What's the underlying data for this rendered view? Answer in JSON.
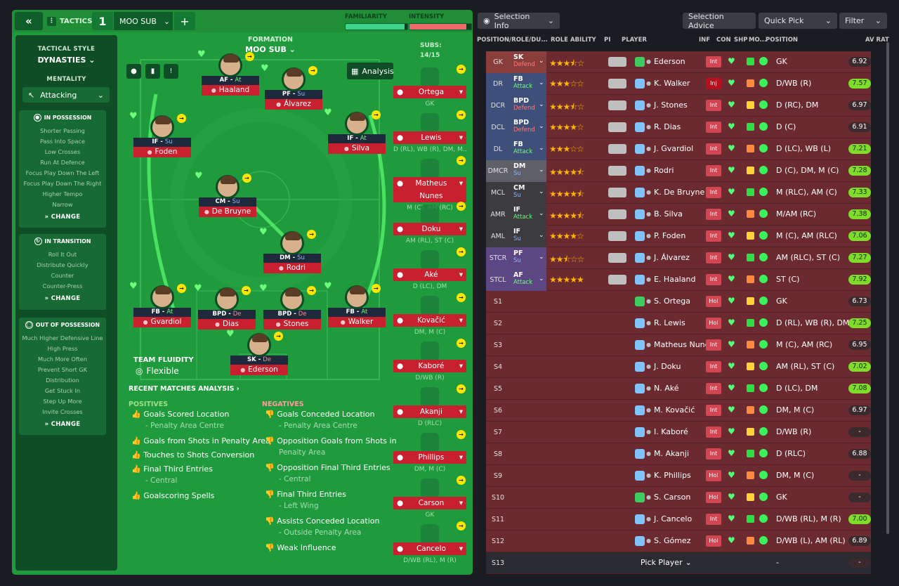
{
  "topbar": {
    "tactics_label": "TACTICS",
    "tactic_number": "1",
    "tactic_name": "MOO SUB",
    "familiarity_label": "FAMILIARITY",
    "intensity_label": "INTENSITY",
    "familiarity_value": 0.95,
    "intensity_value": 0.92
  },
  "sidebar": {
    "style_label": "TACTICAL STYLE",
    "style_value": "DYNASTIES",
    "mentality_label": "MENTALITY",
    "mentality_value": "Attacking",
    "in_possession": {
      "title": "IN POSSESSION",
      "items": [
        "Shorter Passing",
        "Pass Into Space",
        "Low Crosses",
        "Run At Defence",
        "Focus Play Down The Left",
        "Focus Play Down The Right",
        "Higher Tempo",
        "Narrow"
      ],
      "change": "CHANGE"
    },
    "in_transition": {
      "title": "IN TRANSITION",
      "items": [
        "Roll It Out",
        "Distribute Quickly",
        "Counter",
        "Counter-Press"
      ],
      "change": "CHANGE"
    },
    "out_of_possession": {
      "title": "OUT OF POSSESSION",
      "items": [
        "Much Higher Defensive Line",
        "High Press",
        "Much More Often",
        "Prevent Short GK",
        "Distribution",
        "Get Stuck In",
        "Step Up More",
        "Invite Crosses"
      ],
      "change": "CHANGE"
    }
  },
  "pitch": {
    "formation_label": "FORMATION",
    "formation_value": "MOO SUB",
    "analysis_label": "Analysis",
    "team_fluidity_label": "TEAM FLUIDITY",
    "team_fluidity_value": "Flexible",
    "players": [
      {
        "role": "AF",
        "duty": "At",
        "name": "Haaland"
      },
      {
        "role": "PF",
        "duty": "Su",
        "name": "Álvarez"
      },
      {
        "role": "IF",
        "duty": "Su",
        "name": "Foden"
      },
      {
        "role": "IF",
        "duty": "At",
        "name": "Silva"
      },
      {
        "role": "CM",
        "duty": "Su",
        "name": "De Bruyne"
      },
      {
        "role": "DM",
        "duty": "Su",
        "name": "Rodri"
      },
      {
        "role": "FB",
        "duty": "At",
        "name": "Gvardiol"
      },
      {
        "role": "BPD",
        "duty": "De",
        "name": "Dias"
      },
      {
        "role": "BPD",
        "duty": "De",
        "name": "Stones"
      },
      {
        "role": "FB",
        "duty": "At",
        "name": "Walker"
      },
      {
        "role": "SK",
        "duty": "De",
        "name": "Ederson"
      }
    ]
  },
  "recent": {
    "title": "RECENT MATCHES ANALYSIS",
    "positives_label": "POSITIVES",
    "negatives_label": "NEGATIVES",
    "positives": [
      {
        "t": "Goals Scored Location",
        "s": "- Penalty Area Centre"
      },
      {
        "t": "Goals from Shots in Penalty Area",
        "s": ""
      },
      {
        "t": "Touches to Shots Conversion",
        "s": ""
      },
      {
        "t": "Final Third Entries",
        "s": "- Central"
      },
      {
        "t": "Goalscoring Spells",
        "s": ""
      }
    ],
    "negatives": [
      {
        "t": "Goals Conceded Location",
        "s": "- Penalty Area Centre"
      },
      {
        "t": "Opposition Goals from Shots in",
        "s": "Penalty Area"
      },
      {
        "t": "Opposition Final Third Entries",
        "s": "- Central"
      },
      {
        "t": "Final Third Entries",
        "s": "- Left Wing"
      },
      {
        "t": "Assists Conceded Location",
        "s": "- Outside Penalty Area"
      },
      {
        "t": "Weak Influence",
        "s": ""
      }
    ]
  },
  "subs": {
    "label": "SUBS:",
    "count": "14/15",
    "list": [
      {
        "name": "Ortega",
        "pos": "GK"
      },
      {
        "name": "Lewis",
        "pos": "D (RL), WB (R), DM, M..."
      },
      {
        "name": "Matheus Nunes",
        "pos": "M (C), AM (RC)"
      },
      {
        "name": "Doku",
        "pos": "AM (RL), ST (C)"
      },
      {
        "name": "Aké",
        "pos": "D (LC), DM"
      },
      {
        "name": "Kovačić",
        "pos": "DM, M (C)"
      },
      {
        "name": "Kaboré",
        "pos": "D/WB (R)"
      },
      {
        "name": "Akanji",
        "pos": "D (RLC)"
      },
      {
        "name": "Phillips",
        "pos": "DM, M (C)"
      },
      {
        "name": "Carson",
        "pos": "GK"
      },
      {
        "name": "Cancelo",
        "pos": "D/WB (RL), M (R)"
      }
    ]
  },
  "right": {
    "selection_info": "Selection Info",
    "selection_advice": "Selection Advice",
    "quick_pick": "Quick Pick",
    "filter": "Filter",
    "headers": {
      "pos": "POSITION/ROLE/DU...",
      "ability": "ROLE ABILITY",
      "pi": "PI",
      "player": "PLAYER",
      "inf": "INF",
      "con": "CON",
      "shp": "SHP",
      "mo": "MO...",
      "position": "POSITION",
      "rat": "AV RAT"
    },
    "rows": [
      {
        "pos": "GK",
        "role": "SK",
        "duty": "Defend",
        "stars": 3.5,
        "player": "Ederson",
        "gk": true,
        "inf": "Int",
        "ppos": "GK",
        "rat": "6.92",
        "good": false
      },
      {
        "pos": "DR",
        "role": "FB",
        "duty": "Attack",
        "stars": 3,
        "player": "K. Walker",
        "gk": false,
        "inf": "Inj",
        "ppos": "D/WB (R)",
        "rat": "7.57",
        "good": true
      },
      {
        "pos": "DCR",
        "role": "BPD",
        "duty": "Defend",
        "stars": 3.5,
        "player": "J. Stones",
        "gk": false,
        "inf": "Int",
        "ppos": "D (RC), DM",
        "rat": "6.97",
        "good": false
      },
      {
        "pos": "DCL",
        "role": "BPD",
        "duty": "Defend",
        "stars": 4,
        "player": "R. Dias",
        "gk": false,
        "inf": "Int",
        "ppos": "D (C)",
        "rat": "6.91",
        "good": false
      },
      {
        "pos": "DL",
        "role": "FB",
        "duty": "Attack",
        "stars": 3,
        "player": "J. Gvardiol",
        "gk": false,
        "inf": "Int",
        "ppos": "D (LC), WB (L)",
        "rat": "7.21",
        "good": true
      },
      {
        "pos": "DMCR",
        "role": "DM",
        "duty": "Su",
        "stars": 4.5,
        "player": "Rodri",
        "gk": false,
        "inf": "Int",
        "ppos": "D (C), DM, M (C)",
        "rat": "7.28",
        "good": true
      },
      {
        "pos": "MCL",
        "role": "CM",
        "duty": "Su",
        "stars": 4.5,
        "player": "K. De Bruyne",
        "gk": false,
        "inf": "Int",
        "ppos": "M (RLC), AM (C)",
        "rat": "7.33",
        "good": true
      },
      {
        "pos": "AMR",
        "role": "IF",
        "duty": "Attack",
        "stars": 4.5,
        "player": "B. Silva",
        "gk": false,
        "inf": "Int",
        "ppos": "M/AM (RC)",
        "rat": "7.38",
        "good": true
      },
      {
        "pos": "AML",
        "role": "IF",
        "duty": "Su",
        "stars": 4,
        "player": "P. Foden",
        "gk": false,
        "inf": "Int",
        "ppos": "M (C), AM (RLC)",
        "rat": "7.06",
        "good": true
      },
      {
        "pos": "STCR",
        "role": "PF",
        "duty": "Su",
        "stars": 2.5,
        "player": "J. Álvarez",
        "gk": false,
        "inf": "Int",
        "ppos": "AM (RLC), ST (C)",
        "rat": "7.27",
        "good": true
      },
      {
        "pos": "STCL",
        "role": "AF",
        "duty": "Attack",
        "stars": 5,
        "player": "E. Haaland",
        "gk": false,
        "inf": "Int",
        "ppos": "ST (C)",
        "rat": "7.92",
        "good": true
      },
      {
        "pos": "S1",
        "role": "",
        "duty": "",
        "stars": 0,
        "player": "S. Ortega",
        "gk": true,
        "inf": "Hol",
        "ppos": "GK",
        "rat": "6.73",
        "good": false
      },
      {
        "pos": "S2",
        "role": "",
        "duty": "",
        "stars": 0,
        "player": "R. Lewis",
        "gk": false,
        "inf": "Hol",
        "ppos": "D (RL), WB (R), DM,...",
        "rat": "7.25",
        "good": true
      },
      {
        "pos": "S3",
        "role": "",
        "duty": "",
        "stars": 0,
        "player": "Matheus Nunes",
        "gk": false,
        "inf": "Int",
        "ppos": "M (C), AM (RC)",
        "rat": "6.95",
        "good": false
      },
      {
        "pos": "S4",
        "role": "",
        "duty": "",
        "stars": 0,
        "player": "J. Doku",
        "gk": false,
        "inf": "Int",
        "ppos": "AM (RL), ST (C)",
        "rat": "7.02",
        "good": true
      },
      {
        "pos": "S5",
        "role": "",
        "duty": "",
        "stars": 0,
        "player": "N. Aké",
        "gk": false,
        "inf": "Int",
        "ppos": "D (LC), DM",
        "rat": "7.08",
        "good": true
      },
      {
        "pos": "S6",
        "role": "",
        "duty": "",
        "stars": 0,
        "player": "M. Kovačić",
        "gk": false,
        "inf": "Int",
        "ppos": "DM, M (C)",
        "rat": "6.97",
        "good": false
      },
      {
        "pos": "S7",
        "role": "",
        "duty": "",
        "stars": 0,
        "player": "I. Kaboré",
        "gk": false,
        "inf": "Int",
        "ppos": "D/WB (R)",
        "rat": "-",
        "good": false
      },
      {
        "pos": "S8",
        "role": "",
        "duty": "",
        "stars": 0,
        "player": "M. Akanji",
        "gk": false,
        "inf": "Int",
        "ppos": "D (RLC)",
        "rat": "6.88",
        "good": false
      },
      {
        "pos": "S9",
        "role": "",
        "duty": "",
        "stars": 0,
        "player": "K. Phillips",
        "gk": false,
        "inf": "Hol",
        "ppos": "DM, M (C)",
        "rat": "-",
        "good": false
      },
      {
        "pos": "S10",
        "role": "",
        "duty": "",
        "stars": 0,
        "player": "S. Carson",
        "gk": true,
        "inf": "Hol",
        "ppos": "GK",
        "rat": "-",
        "good": false
      },
      {
        "pos": "S11",
        "role": "",
        "duty": "",
        "stars": 0,
        "player": "J. Cancelo",
        "gk": false,
        "inf": "Int",
        "ppos": "D/WB (RL), M (R)",
        "rat": "7.00",
        "good": true
      },
      {
        "pos": "S12",
        "role": "",
        "duty": "",
        "stars": 0,
        "player": "S. Gómez",
        "gk": false,
        "inf": "Hol",
        "ppos": "D/WB (L), AM (RL)",
        "rat": "6.89",
        "good": false
      },
      {
        "pos": "S13",
        "role": "",
        "duty": "",
        "stars": 0,
        "player": "Pick Player",
        "gk": null,
        "inf": "",
        "ppos": "-",
        "rat": "-",
        "good": false
      }
    ]
  }
}
